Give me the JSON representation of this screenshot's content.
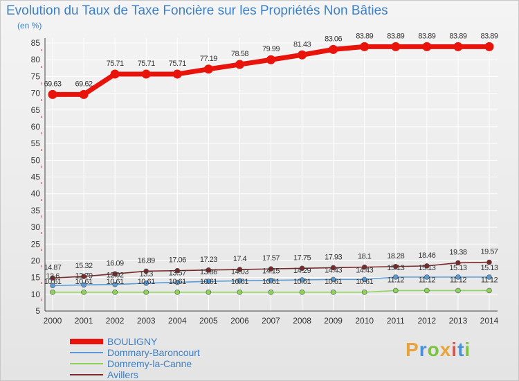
{
  "header": {
    "title": "Evolution du Taux de Taxe Foncière sur les Propriétés Non Bâties",
    "unit": "(en %)"
  },
  "brand": {
    "text": "Proxiti",
    "colors": [
      "#e8a33c",
      "#4a90d9",
      "#7cc242",
      "#e8a33c",
      "#d9534f",
      "#4a90d9",
      "#7cc242"
    ]
  },
  "chart_data": {
    "type": "line",
    "title": "Evolution du Taux de Taxe Foncière sur les Propriétés Non Bâties",
    "ylabel": "(en %)",
    "xlabel": "",
    "ylim": [
      5,
      85
    ],
    "yticks": [
      5,
      10,
      15,
      20,
      25,
      30,
      35,
      40,
      45,
      50,
      55,
      60,
      65,
      70,
      75,
      80,
      85
    ],
    "categories": [
      "2000",
      "2001",
      "2002",
      "2003",
      "2004",
      "2005",
      "2006",
      "2007",
      "2008",
      "2009",
      "2010",
      "2011",
      "2012",
      "2013",
      "2014"
    ],
    "series": [
      {
        "name": "BOULIGNY",
        "color": "#e8140c",
        "emphasis": "thick",
        "values": [
          69.63,
          69.62,
          75.71,
          75.71,
          75.71,
          77.19,
          78.58,
          79.99,
          81.43,
          83.06,
          83.89,
          83.89,
          83.89,
          83.89,
          83.89
        ],
        "labels": [
          "69.63",
          "69.62",
          "75.71",
          "75.71",
          "75.71",
          "77.19",
          "78.58",
          "79.99",
          "81.43",
          "83.06",
          "83.89",
          "83.89",
          "83.89",
          "83.89",
          "83.89"
        ]
      },
      {
        "name": "Dommary-Baroncourt",
        "color": "#5b9bd5",
        "emphasis": "thin",
        "values": [
          12.6,
          12.79,
          12.92,
          13.3,
          13.57,
          13.86,
          14.03,
          14.15,
          14.29,
          14.43,
          14.43,
          15.13,
          15.13,
          15.13,
          15.13
        ],
        "labels": [
          "12.6",
          "12.79",
          "12.92",
          "13.3",
          "13.57",
          "13.86",
          "14.03",
          "14.15",
          "14.29",
          "14.43",
          "14.43",
          "15.13",
          "15.13",
          "15.13",
          "15.13"
        ]
      },
      {
        "name": "Domremy-la-Canne",
        "color": "#8fd45a",
        "emphasis": "thin",
        "values": [
          10.61,
          10.61,
          10.61,
          10.61,
          10.61,
          10.61,
          10.61,
          10.61,
          10.61,
          10.61,
          10.61,
          11.12,
          11.12,
          11.12,
          11.12
        ],
        "labels": [
          "10.61",
          "10.61",
          "10.61",
          "10.61",
          "10.61",
          "10.61",
          "10.61",
          "10.61",
          "10.61",
          "10.61",
          "10.61",
          "11.12",
          "11.12",
          "11.12",
          "11.12"
        ]
      },
      {
        "name": "Avillers",
        "color": "#7a2a2a",
        "emphasis": "thin",
        "values": [
          14.87,
          15.32,
          16.09,
          16.89,
          17.06,
          17.23,
          17.4,
          17.57,
          17.75,
          17.93,
          18.1,
          18.28,
          18.46,
          19.38,
          19.57
        ],
        "labels": [
          "14.87",
          "15.32",
          "16.09",
          "16.89",
          "17.06",
          "17.23",
          "17.4",
          "17.57",
          "17.75",
          "17.93",
          "18.1",
          "18.28",
          "18.46",
          "19.38",
          "19.57"
        ]
      }
    ],
    "legend": {
      "position": "bottom-left",
      "items": [
        {
          "label": "BOULIGNY",
          "color": "#e8140c"
        },
        {
          "label": "Dommary-Baroncourt",
          "color": "#5b9bd5"
        },
        {
          "label": "Domremy-la-Canne",
          "color": "#8fd45a"
        },
        {
          "label": "Avillers",
          "color": "#7a2a2a"
        }
      ]
    }
  }
}
